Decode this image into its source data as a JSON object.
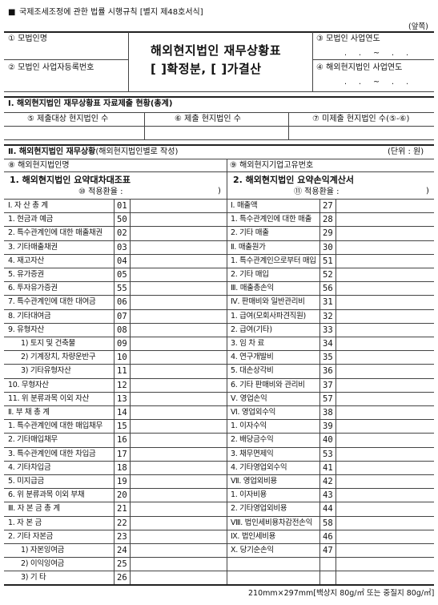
{
  "header": {
    "square": "■",
    "law_ref": "국제조세조정에 관한 법률 시행규칙 [별지 제48호서식]",
    "side": "(앞쪽)"
  },
  "title": {
    "line1": "해외현지법인 재무상황표",
    "line2": "[  ]확정분,  [  ]가결산"
  },
  "top": {
    "parent_name": "① 모법인명",
    "parent_biz_no": "② 모법인 사업자등록번호",
    "parent_fy": "③ 모법인 사업연도",
    "sub_fy": "④ 해외현지법인 사업연도",
    "date_fmt": ". . ~ . ."
  },
  "section1": {
    "title": "Ⅰ. 해외현지법인 재무상황표 자료제출 현황(총계)",
    "cols": [
      "⑤ 제출대상 현지법인 수",
      "⑥ 제출 현지법인 수",
      "⑦ 미제출 현지법인 수(⑤-⑥)"
    ]
  },
  "section2": {
    "title_bold": "Ⅱ. 해외현지법인 재무상황",
    "title_rest": "(해외현지법인별로 작성)",
    "unit": "(단위 : 원)",
    "name": "⑧ 해외현지법인명",
    "code": "⑨ 해외현지기업고유번호",
    "bs_title": "1. 해외현지법인 요약대차대조표",
    "bs_rate": "⑩ 적용환율 :",
    "is_title": "2. 해외현지법인 요약손익계산서",
    "is_rate": "⑪ 적용환율 :",
    "paren": ")"
  },
  "bs_rows": [
    {
      "label": "Ⅰ. 자 산 총 계",
      "code": "01"
    },
    {
      "label": "1. 현금과 예금",
      "code": "50"
    },
    {
      "label": "2. 특수관계인에 대한 매출채권",
      "code": "02"
    },
    {
      "label": "3. 기타매출채권",
      "code": "03"
    },
    {
      "label": "4. 재고자산",
      "code": "04"
    },
    {
      "label": "5. 유가증권",
      "code": "05"
    },
    {
      "label": "6. 투자유가증권",
      "code": "55"
    },
    {
      "label": "7. 특수관계인에 대한 대여금",
      "code": "06"
    },
    {
      "label": "8. 기타대여금",
      "code": "07"
    },
    {
      "label": "9. 유형자산",
      "code": "08"
    },
    {
      "label": "1) 토지 및 건축물",
      "code": "09"
    },
    {
      "label": "2) 기계장치, 차량운반구",
      "code": "10"
    },
    {
      "label": "3) 기타유형자산",
      "code": "11"
    },
    {
      "label": "10. 무형자산",
      "code": "12"
    },
    {
      "label": "11. 위 분류과목 이외 자산",
      "code": "13"
    },
    {
      "label": "Ⅱ. 부 채 총 계",
      "code": "14"
    },
    {
      "label": "1. 특수관계인에 대한 매입채무",
      "code": "15"
    },
    {
      "label": "2. 기타매입채무",
      "code": "16"
    },
    {
      "label": "3. 특수관계인에 대한 차입금",
      "code": "17"
    },
    {
      "label": "4. 기타차입금",
      "code": "18"
    },
    {
      "label": "5. 미지급금",
      "code": "19"
    },
    {
      "label": "6. 위 분류과목 이외 부채",
      "code": "20"
    },
    {
      "label": "Ⅲ. 자 본 금 총 계",
      "code": "21"
    },
    {
      "label": "1. 자 본 금",
      "code": "22"
    },
    {
      "label": "2. 기타 자본금",
      "code": "23"
    },
    {
      "label": "1) 자본잉여금",
      "code": "24"
    },
    {
      "label": "2) 이익잉여금",
      "code": "25"
    },
    {
      "label": "3) 기 타",
      "code": "26"
    }
  ],
  "is_rows": [
    {
      "label": "Ⅰ. 매출액",
      "code": "27"
    },
    {
      "label": "1. 특수관계인에 대한 매출",
      "code": "28"
    },
    {
      "label": "2. 기타 매출",
      "code": "29"
    },
    {
      "label": "Ⅱ. 매출원가",
      "code": "30"
    },
    {
      "label": "1. 특수관계인으로부터 매입",
      "code": "51"
    },
    {
      "label": "2. 기타 매입",
      "code": "52"
    },
    {
      "label": "Ⅲ. 매출총손익",
      "code": "56"
    },
    {
      "label": "Ⅳ. 판매비와 일반관리비",
      "code": "31"
    },
    {
      "label": "1. 급여(모회사파견직원)",
      "code": "32"
    },
    {
      "label": "2. 급여(기타)",
      "code": "33"
    },
    {
      "label": "3. 임 차 료",
      "code": "34"
    },
    {
      "label": "4. 연구개발비",
      "code": "35"
    },
    {
      "label": "5. 대손상각비",
      "code": "36"
    },
    {
      "label": "6. 기타 판매비와 관리비",
      "code": "37"
    },
    {
      "label": "Ⅴ. 영업손익",
      "code": "57"
    },
    {
      "label": "Ⅵ. 영업외수익",
      "code": "38"
    },
    {
      "label": "1. 이자수익",
      "code": "39"
    },
    {
      "label": "2. 배당금수익",
      "code": "40"
    },
    {
      "label": "3. 채무면제익",
      "code": "53"
    },
    {
      "label": "4. 기타영업외수익",
      "code": "41"
    },
    {
      "label": "Ⅶ. 영업외비용",
      "code": "42"
    },
    {
      "label": "1. 이자비용",
      "code": "43"
    },
    {
      "label": "2. 기타영업외비용",
      "code": "44"
    },
    {
      "label": "Ⅷ. 법인세비용차감전손익",
      "code": "58"
    },
    {
      "label": "Ⅸ. 법인세비용",
      "code": "46"
    },
    {
      "label": "Ⅹ. 당기순손익",
      "code": "47"
    },
    {
      "label": "",
      "code": ""
    },
    {
      "label": "",
      "code": ""
    }
  ],
  "footer": "210mm×297mm[백상지 80g/㎡ 또는 중질지 80g/㎡]"
}
